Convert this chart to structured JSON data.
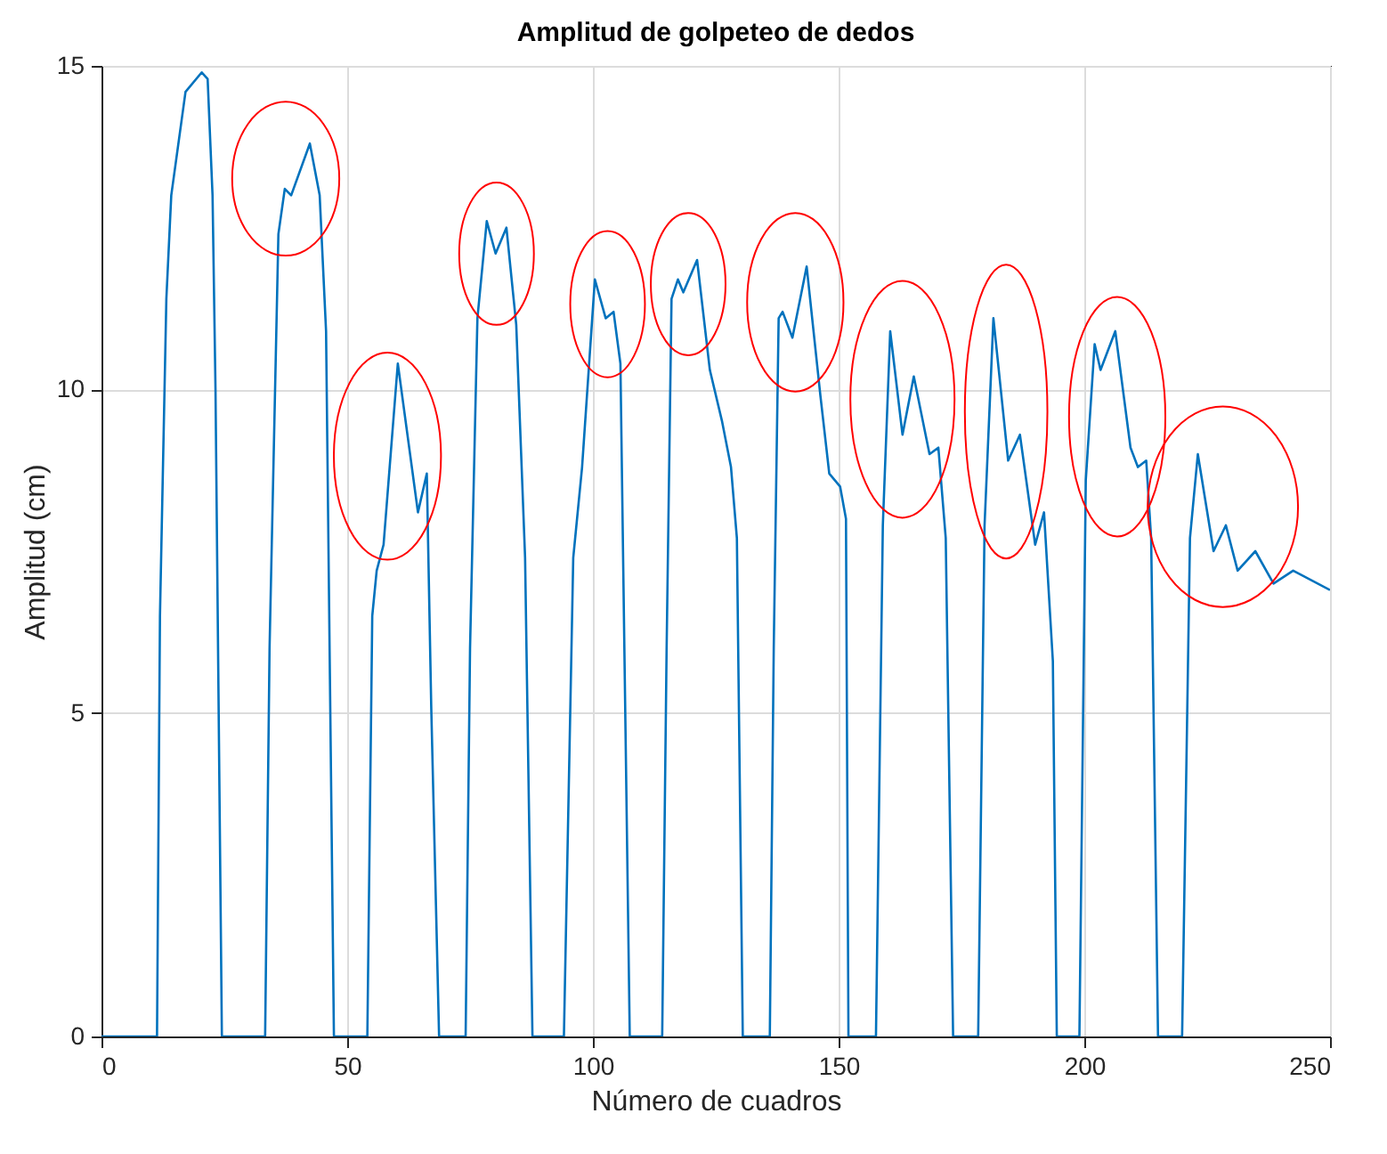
{
  "chart_data": {
    "type": "line",
    "title": "Amplitud de golpeteo de dedos",
    "xlabel": "Número de cuadros",
    "ylabel": "Amplitud (cm)",
    "x": [
      0,
      11.3,
      11.9,
      13.2,
      14.2,
      17.1,
      20.4,
      21.6,
      22.6,
      23.2,
      24.5,
      33.3,
      34.2,
      36,
      37.3,
      38.6,
      42.4,
      44.4,
      45.7,
      47.3,
      54.1,
      55.1,
      56,
      57.4,
      60.3,
      64.4,
      66.2,
      67.1,
      68.7,
      74.1,
      75,
      76.5,
      78.4,
      80.2,
      82.4,
      84.4,
      86.2,
      87.7,
      94.1,
      96,
      97.8,
      100.4,
      102.6,
      104.2,
      105.6,
      107.5,
      114.1,
      115,
      116,
      117.3,
      118.4,
      121.2,
      123.8,
      126.3,
      128.1,
      129.3,
      130.5,
      136,
      136.8,
      137.8,
      138.6,
      140.6,
      143.5,
      146.3,
      148.1,
      150.3,
      151.5,
      152,
      157.6,
      159,
      160.5,
      163,
      165.3,
      168.5,
      170.3,
      171.8,
      173.3,
      178.4,
      179.7,
      181.5,
      184.5,
      186.9,
      190,
      191.8,
      193.6,
      194.4,
      199,
      200.3,
      202.1,
      203.3,
      206.3,
      209.4,
      210.9,
      212.6,
      213.6,
      215,
      219.9,
      221.5,
      223.1,
      226.3,
      228.8,
      231.2,
      234.8,
      238.5,
      242.5,
      250
    ],
    "series": [
      {
        "color": "#0072bd",
        "values": [
          0,
          0,
          6.5,
          11.4,
          13,
          14.6,
          14.9,
          14.8,
          13,
          10,
          0,
          0,
          6,
          12.4,
          13.1,
          13,
          13.8,
          13,
          10.9,
          0,
          0,
          6.5,
          7.2,
          7.6,
          10.4,
          8.1,
          8.7,
          5.1,
          0,
          0,
          6,
          11.1,
          12.6,
          12.1,
          12.5,
          11,
          7.4,
          0,
          0,
          7.4,
          8.8,
          11.7,
          11.1,
          11.2,
          10.4,
          0,
          0,
          6,
          11.4,
          11.7,
          11.5,
          12,
          10.3,
          9.5,
          8.8,
          7.7,
          0,
          0,
          6,
          11.1,
          11.2,
          10.8,
          11.9,
          9.9,
          8.7,
          8.5,
          8,
          0,
          0,
          7.9,
          10.9,
          9.3,
          10.2,
          9,
          9.1,
          7.7,
          0,
          0,
          7.9,
          11.1,
          8.9,
          9.3,
          7.6,
          8.1,
          5.8,
          0,
          0,
          8.6,
          10.7,
          10.3,
          10.9,
          9.1,
          8.8,
          8.9,
          7.7,
          0,
          0,
          7.7,
          9,
          7.5,
          7.9,
          7.2,
          7.5,
          7,
          7.2,
          6.9
        ]
      }
    ],
    "xlim": [
      0,
      250
    ],
    "xticks": [
      0,
      50,
      100,
      150,
      200,
      250
    ],
    "ylim": [
      0,
      15
    ],
    "yticks": [
      0,
      5,
      10,
      15
    ],
    "grid": true
  }
}
